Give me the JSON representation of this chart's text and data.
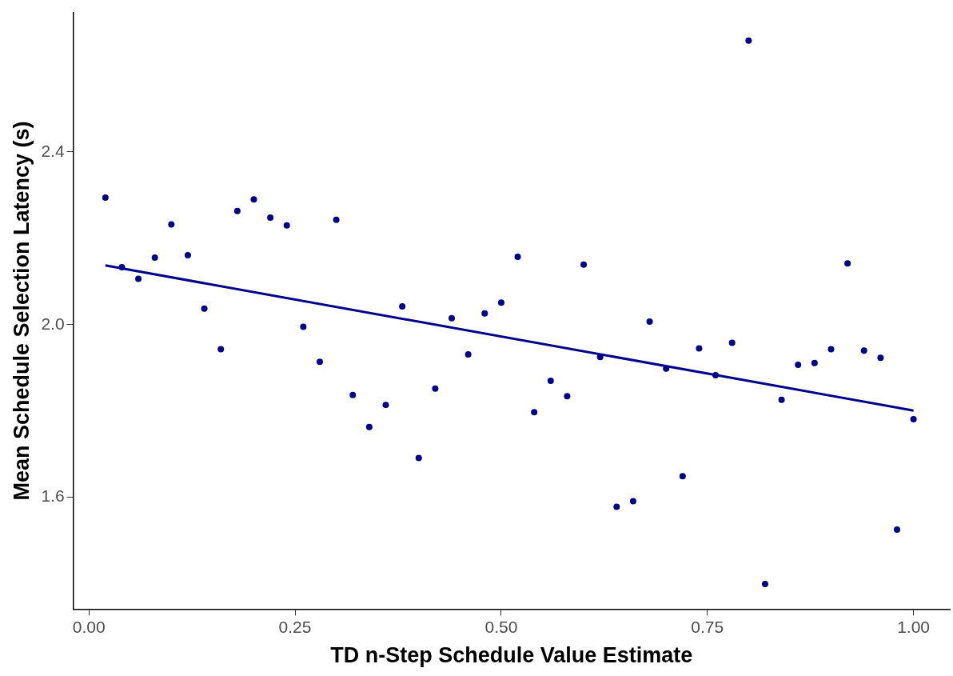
{
  "chart_data": {
    "type": "scatter",
    "xlabel": "TD n-Step Schedule Value Estimate",
    "ylabel": "Mean Schedule Selection Latency (s)",
    "x": [
      0.02,
      0.04,
      0.06,
      0.08,
      0.1,
      0.12,
      0.14,
      0.16,
      0.18,
      0.2,
      0.22,
      0.24,
      0.26,
      0.28,
      0.3,
      0.32,
      0.34,
      0.36,
      0.38,
      0.4,
      0.42,
      0.44,
      0.46,
      0.48,
      0.5,
      0.52,
      0.54,
      0.56,
      0.58,
      0.6,
      0.62,
      0.64,
      0.66,
      0.68,
      0.7,
      0.72,
      0.74,
      0.76,
      0.78,
      0.8,
      0.82,
      0.84,
      0.86,
      0.88,
      0.9,
      0.92,
      0.94,
      0.96,
      0.98,
      1.0
    ],
    "series": [
      {
        "color": "#00008b",
        "marker": "circle",
        "values": [
          2.294,
          2.133,
          2.106,
          2.155,
          2.232,
          2.161,
          2.037,
          1.943,
          2.263,
          2.29,
          2.248,
          2.23,
          1.995,
          1.914,
          2.243,
          1.837,
          1.763,
          1.814,
          2.042,
          1.691,
          1.852,
          2.015,
          1.931,
          2.026,
          2.051,
          2.157,
          1.797,
          1.87,
          1.834,
          2.139,
          1.925,
          1.578,
          1.591,
          2.007,
          1.898,
          1.649,
          1.945,
          1.883,
          1.958,
          2.658,
          1.399,
          1.826,
          1.907,
          1.911,
          1.943,
          2.142,
          1.94,
          1.923,
          1.525,
          1.781
        ]
      },
      {
        "type": "line",
        "color": "#00008b",
        "marker": "none",
        "x": [
          0.02,
          1.0
        ],
        "values": [
          2.137,
          1.801
        ]
      }
    ],
    "xlim": [
      -0.019,
      1.044
    ],
    "ylim": [
      1.341,
      2.723
    ],
    "xticks": [
      {
        "value": 0,
        "label": "0.00"
      },
      {
        "value": 0.25,
        "label": "0.25"
      },
      {
        "value": 0.5,
        "label": "0.50"
      },
      {
        "value": 0.75,
        "label": "0.75"
      },
      {
        "value": 1,
        "label": "1.00"
      }
    ],
    "yticks": [
      {
        "value": 1.6,
        "label": "1.6"
      },
      {
        "value": 2,
        "label": "2.0"
      },
      {
        "value": 2.4,
        "label": "2.4"
      }
    ],
    "grid": false,
    "legend": false,
    "line_style": "solid"
  }
}
